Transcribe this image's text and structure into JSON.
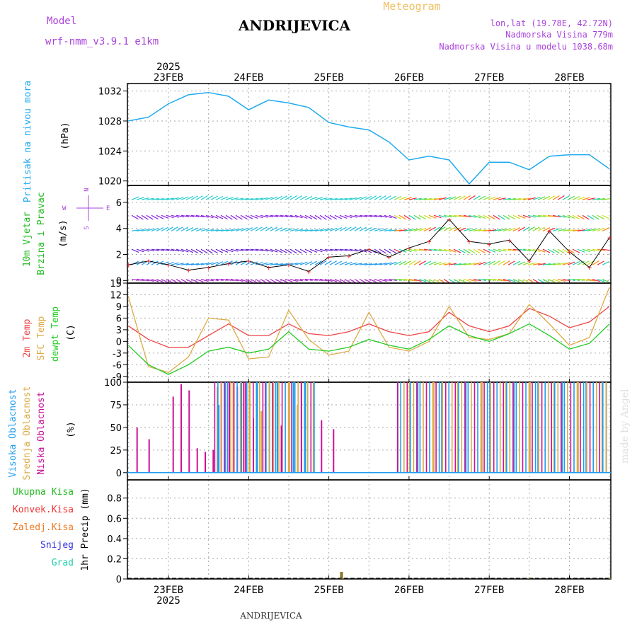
{
  "header": {
    "model_label": "Model",
    "model_name": "wrf-nmm_v3.9.1  e1km",
    "title": "ANDRIJEVICA",
    "subtitle": "Meteogram",
    "coords": "lon,lat (19.78E, 42.72N)",
    "elevation": "Nadmorska Visina 779m",
    "model_elevation": "Nadmorska Visina u modelu 1038.68m",
    "footer_title": "ANDRIJEVICA",
    "credit": "made by Angel"
  },
  "axes": {
    "year": "2025",
    "dates": [
      "23FEB",
      "24FEB",
      "25FEB",
      "26FEB",
      "27FEB",
      "28FEB"
    ]
  },
  "colors": {
    "pressure": "#1eaaee",
    "temp2m": "#ee4444",
    "sfc_temp": "#ddaa44",
    "dewpoint": "#22cc22",
    "high_cloud": "#1e9cf0",
    "mid_cloud": "#ddaa44",
    "low_cloud": "#cc1199",
    "label_purple": "#aa44dd",
    "wind_label": "#22bb22"
  },
  "panels": {
    "pressure": {
      "label1": "Pritisak na nivou mora",
      "unit": "(hPa)"
    },
    "wind": {
      "label1": "10m Vjetar",
      "label2": "Brzina i Pravac",
      "unit": "(m/s)",
      "compass_n": "N",
      "compass_w": "W",
      "compass_e": "E",
      "compass_s": "S"
    },
    "temp": {
      "label1": "2m Temp",
      "label2": "SFC Temp",
      "label3": "dewpt Temp",
      "unit": "(C)"
    },
    "cloud": {
      "label1": "Visoka Oblacnost",
      "label2": "Srednja Oblacnost",
      "label3": "Niska Oblacnost",
      "unit": "(%)"
    },
    "precip": {
      "legend": [
        "Ukupna Kisa",
        "Konvek.Kisa",
        "Zaledj.Kisa",
        "Snijeg",
        "Grad"
      ],
      "unit": "1hr Precip (mm)"
    }
  },
  "chart_data": [
    {
      "type": "line",
      "name": "pressure",
      "ylabel": "Pritisak na nivou mora (hPa)",
      "x_days": [
        0,
        0.25,
        0.5,
        0.75,
        1.0,
        1.25,
        1.5,
        1.75,
        2.0,
        2.25,
        2.5,
        2.75,
        3.0,
        3.25,
        3.5,
        3.75,
        4.0,
        4.25,
        4.5,
        4.75,
        5.0,
        5.25,
        5.5,
        5.75,
        6.0
      ],
      "values": [
        1028,
        1028.5,
        1030.3,
        1031.5,
        1031.8,
        1031.3,
        1029.5,
        1030.8,
        1030.4,
        1029.8,
        1027.8,
        1027.2,
        1026.8,
        1025.2,
        1022.8,
        1023.3,
        1022.8,
        1019.6,
        1022.5,
        1022.5,
        1021.5,
        1023.3,
        1023.5,
        1023.5,
        1021.6
      ],
      "ylim": [
        1019.4,
        1033
      ],
      "yticks": [
        1020,
        1024,
        1028,
        1032
      ]
    },
    {
      "type": "line",
      "name": "wind_speed",
      "ylabel": "10m Vjetar Brzina i Pravac (m/s)",
      "x_days": [
        0,
        0.25,
        0.5,
        0.75,
        1.0,
        1.25,
        1.5,
        1.75,
        2.0,
        2.25,
        2.5,
        2.75,
        3.0,
        3.25,
        3.5,
        3.75,
        4.0,
        4.25,
        4.5,
        4.75,
        5.0,
        5.25,
        5.5,
        5.75,
        6.0
      ],
      "values": [
        1.2,
        1.5,
        1.2,
        0.8,
        1.0,
        1.3,
        1.5,
        1.0,
        1.2,
        0.7,
        1.8,
        1.9,
        2.4,
        1.8,
        2.5,
        3.0,
        4.7,
        3.0,
        2.8,
        3.1,
        1.5,
        3.8,
        2.2,
        1.0,
        3.3
      ],
      "ylim": [
        -0.2,
        7.3
      ],
      "yticks": [
        0,
        2,
        4,
        6
      ]
    },
    {
      "type": "line",
      "name": "temperature",
      "ylabel": "Temp (C)",
      "x_days": [
        0,
        0.25,
        0.5,
        0.75,
        1.0,
        1.25,
        1.5,
        1.75,
        2.0,
        2.25,
        2.5,
        2.75,
        3.0,
        3.25,
        3.5,
        3.75,
        4.0,
        4.25,
        4.5,
        4.75,
        5.0,
        5.25,
        5.5,
        5.75,
        6.0
      ],
      "series": [
        {
          "name": "2m Temp",
          "values": [
            4,
            0.5,
            -1.5,
            -1.5,
            1.5,
            4.5,
            1.5,
            1.5,
            4.5,
            2.0,
            1.5,
            2.5,
            4.5,
            2.5,
            1.5,
            2.5,
            7.5,
            4.0,
            2.5,
            4.0,
            8.5,
            6.5,
            3.5,
            5.0,
            9.0
          ]
        },
        {
          "name": "SFC Temp",
          "values": [
            11.5,
            -6.5,
            -8.0,
            -4.0,
            6.0,
            5.5,
            -4.5,
            -4.0,
            8.0,
            0.5,
            -3.5,
            -2.5,
            7.5,
            -1.5,
            -2.5,
            0.0,
            9.0,
            1.0,
            0.5,
            2.0,
            9.5,
            4.5,
            -1.0,
            1.0,
            14.0
          ]
        },
        {
          "name": "dewpt Temp",
          "values": [
            -1.0,
            -6.0,
            -8.5,
            -6.0,
            -2.5,
            -1.5,
            -3.0,
            -2.0,
            2.5,
            -2.0,
            -2.5,
            -1.5,
            0.5,
            -1.0,
            -2.0,
            0.5,
            4.0,
            1.5,
            0.0,
            2.0,
            4.5,
            1.5,
            -2.0,
            -0.5,
            4.5
          ]
        }
      ],
      "ylim": [
        -10.5,
        15
      ],
      "yticks": [
        -9,
        -6,
        -3,
        0,
        3,
        6,
        9,
        12,
        15
      ]
    },
    {
      "type": "bar",
      "name": "cloud_cover",
      "ylabel": "Oblacnost (%)",
      "series": [
        {
          "name": "Niska Oblacnost",
          "x_days": [
            0.1,
            0.25,
            0.55,
            0.65,
            0.75,
            0.85,
            0.95,
            1.05,
            1.15,
            1.25,
            1.35,
            1.45,
            1.55,
            1.7,
            1.9,
            2.15,
            2.4,
            2.55
          ],
          "values": [
            50,
            37,
            84,
            98,
            91,
            27,
            23,
            25,
            100,
            100,
            95,
            100,
            60,
            100,
            52,
            100,
            58,
            48
          ]
        },
        {
          "name": "Srednja Oblacnost",
          "x_days": [
            1.1,
            1.3,
            1.5,
            1.65,
            1.8,
            2.0,
            2.1,
            2.3,
            3.35,
            3.5,
            3.8,
            4.1,
            4.4,
            4.7,
            5.0,
            5.3,
            5.6,
            5.9
          ],
          "values": [
            95,
            100,
            100,
            68,
            100,
            100,
            75,
            100,
            37,
            100,
            100,
            100,
            100,
            100,
            100,
            100,
            100,
            100
          ]
        },
        {
          "name": "Visoka Oblacnost",
          "x_days": [
            1.12,
            1.2,
            1.4,
            1.6,
            1.75,
            1.85,
            2.05,
            2.2,
            3.35,
            3.6,
            3.9,
            4.2,
            4.5,
            4.8,
            5.1,
            5.4,
            5.7,
            5.95
          ],
          "values": [
            75,
            100,
            100,
            100,
            100,
            100,
            100,
            100,
            100,
            100,
            100,
            100,
            100,
            100,
            100,
            100,
            100,
            100
          ]
        }
      ],
      "ylim": [
        -8,
        100
      ],
      "yticks": [
        0,
        25,
        50,
        75,
        100
      ]
    },
    {
      "type": "bar",
      "name": "precipitation",
      "ylabel": "1hr Precip (mm)",
      "series": [
        {
          "name": "Ukupna Kisa",
          "x_days": [
            2.64,
            4.98,
            5.98
          ],
          "values": [
            0.07,
            0.01,
            0.01
          ]
        }
      ],
      "ylim": [
        0,
        0.98
      ],
      "yticks": [
        0,
        0.2,
        0.4,
        0.6,
        0.8
      ]
    }
  ]
}
